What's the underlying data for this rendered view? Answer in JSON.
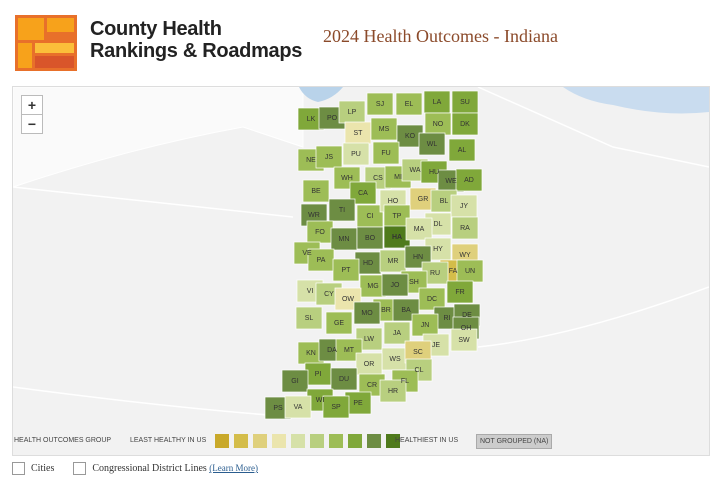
{
  "header": {
    "logo_lines": [
      "County Health",
      "Rankings & Roadmaps"
    ],
    "title": "2024 Health Outcomes - Indiana"
  },
  "map": {
    "zoom_in": "+",
    "zoom_out": "−"
  },
  "legend": {
    "title": "HEALTH OUTCOMES GROUP",
    "low_label": "LEAST HEALTHY IN US",
    "high_label": "HEALTHIEST IN US",
    "na_label": "NOT GROUPED (NA)",
    "colors": [
      "#c9a92a",
      "#d4bd4a",
      "#dfd07c",
      "#ebe5ad",
      "#d6e1a8",
      "#b8cf7f",
      "#9dbd56",
      "#80a83a",
      "#6d8d43",
      "#4f7a1c"
    ]
  },
  "counties": [
    {
      "label": "LK",
      "group": 8
    },
    {
      "label": "PO",
      "group": 9
    },
    {
      "label": "LP",
      "group": 6
    },
    {
      "label": "SJ",
      "group": 7
    },
    {
      "label": "EL",
      "group": 7
    },
    {
      "label": "LA",
      "group": 8
    },
    {
      "label": "SU",
      "group": 8
    },
    {
      "label": "ST",
      "group": 4
    },
    {
      "label": "MS",
      "group": 7
    },
    {
      "label": "KO",
      "group": 9
    },
    {
      "label": "NO",
      "group": 7
    },
    {
      "label": "DK",
      "group": 8
    },
    {
      "label": "NE",
      "group": 7
    },
    {
      "label": "JS",
      "group": 7
    },
    {
      "label": "PU",
      "group": 5
    },
    {
      "label": "FU",
      "group": 7
    },
    {
      "label": "WL",
      "group": 9
    },
    {
      "label": "AL",
      "group": 8
    },
    {
      "label": "WH",
      "group": 7
    },
    {
      "label": "CS",
      "group": 6
    },
    {
      "label": "MI",
      "group": 7
    },
    {
      "label": "WA",
      "group": 6
    },
    {
      "label": "HU",
      "group": 8
    },
    {
      "label": "WE",
      "group": 9
    },
    {
      "label": "AD",
      "group": 8
    },
    {
      "label": "BE",
      "group": 7
    },
    {
      "label": "CA",
      "group": 8
    },
    {
      "label": "GR",
      "group": 3
    },
    {
      "label": "BL",
      "group": 6
    },
    {
      "label": "JY",
      "group": 5
    },
    {
      "label": "WR",
      "group": 9
    },
    {
      "label": "TI",
      "group": 9
    },
    {
      "label": "CI",
      "group": 7
    },
    {
      "label": "HO",
      "group": 5
    },
    {
      "label": "TP",
      "group": 7
    },
    {
      "label": "DL",
      "group": 5
    },
    {
      "label": "RA",
      "group": 6
    },
    {
      "label": "FO",
      "group": 7
    },
    {
      "label": "MN",
      "group": 9
    },
    {
      "label": "BO",
      "group": 9
    },
    {
      "label": "HA",
      "group": 10
    },
    {
      "label": "MA",
      "group": 5
    },
    {
      "label": "HY",
      "group": 5
    },
    {
      "label": "WY",
      "group": 3
    },
    {
      "label": "VE",
      "group": 7
    },
    {
      "label": "PA",
      "group": 7
    },
    {
      "label": "HD",
      "group": 9
    },
    {
      "label": "MR",
      "group": 6
    },
    {
      "label": "HN",
      "group": 9
    },
    {
      "label": "FA",
      "group": 2
    },
    {
      "label": "UN",
      "group": 7
    },
    {
      "label": "PT",
      "group": 7
    },
    {
      "label": "RU",
      "group": 6
    },
    {
      "label": "SH",
      "group": 7
    },
    {
      "label": "VI",
      "group": 5
    },
    {
      "label": "CY",
      "group": 6
    },
    {
      "label": "MG",
      "group": 7
    },
    {
      "label": "JO",
      "group": 9
    },
    {
      "label": "DC",
      "group": 7
    },
    {
      "label": "FR",
      "group": 8
    },
    {
      "label": "OW",
      "group": 4
    },
    {
      "label": "BR",
      "group": 7
    },
    {
      "label": "BA",
      "group": 9
    },
    {
      "label": "RI",
      "group": 9
    },
    {
      "label": "DE",
      "group": 9
    },
    {
      "label": "SL",
      "group": 6
    },
    {
      "label": "MO",
      "group": 9
    },
    {
      "label": "GE",
      "group": 7
    },
    {
      "label": "JN",
      "group": 7
    },
    {
      "label": "OH",
      "group": 9
    },
    {
      "label": "JA",
      "group": 6
    },
    {
      "label": "LW",
      "group": 6
    },
    {
      "label": "JE",
      "group": 5
    },
    {
      "label": "SW",
      "group": 5
    },
    {
      "label": "KN",
      "group": 7
    },
    {
      "label": "DA",
      "group": 9
    },
    {
      "label": "MT",
      "group": 7
    },
    {
      "label": "WS",
      "group": 5
    },
    {
      "label": "SC",
      "group": 3
    },
    {
      "label": "OR",
      "group": 5
    },
    {
      "label": "CL",
      "group": 6
    },
    {
      "label": "PI",
      "group": 8
    },
    {
      "label": "DU",
      "group": 9
    },
    {
      "label": "CR",
      "group": 7
    },
    {
      "label": "FL",
      "group": 7
    },
    {
      "label": "GI",
      "group": 9
    },
    {
      "label": "HR",
      "group": 6
    },
    {
      "label": "WI",
      "group": 8
    },
    {
      "label": "PE",
      "group": 8
    },
    {
      "label": "SP",
      "group": 8
    },
    {
      "label": "PS",
      "group": 9
    },
    {
      "label": "VA",
      "group": 5
    }
  ],
  "footer": {
    "layers": [
      "Cities",
      "Congressional District Lines"
    ],
    "learn_more": "(Learn More)"
  }
}
